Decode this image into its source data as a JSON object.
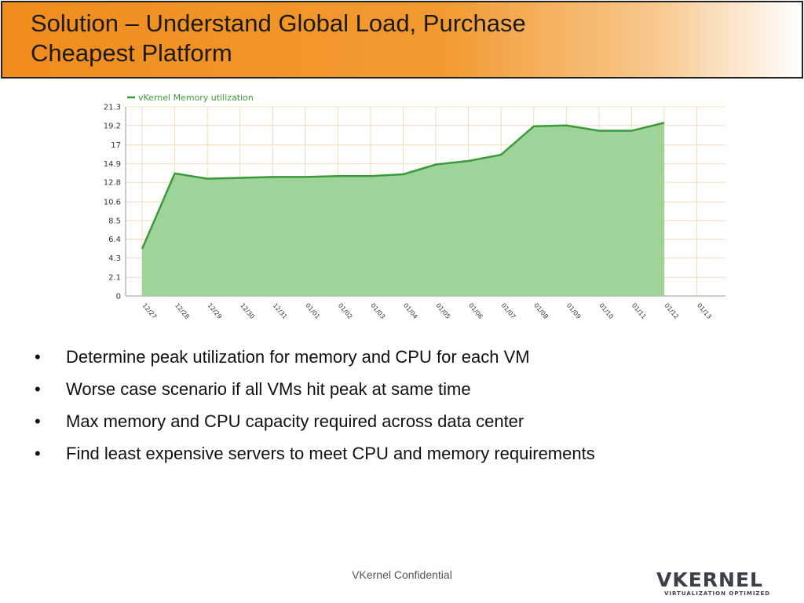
{
  "title": "Solution – Understand Global Load, Purchase Cheapest Platform",
  "chart_data": {
    "type": "area",
    "categories": [
      "12/27",
      "12/28",
      "12/29",
      "12/30",
      "12/31",
      "01/01",
      "01/02",
      "01/03",
      "01/04",
      "01/05",
      "01/06",
      "01/07",
      "01/08",
      "01/09",
      "01/10",
      "01/11",
      "01/12",
      "01/13"
    ],
    "series": [
      {
        "name": "vKernel Memory utilization",
        "color": "#3a9a3a",
        "fill": "#9dd49a",
        "values": [
          5.3,
          13.8,
          13.2,
          13.3,
          13.4,
          13.4,
          13.5,
          13.5,
          13.7,
          14.8,
          15.2,
          15.9,
          19.1,
          19.2,
          18.6,
          18.6,
          19.5,
          null
        ]
      }
    ],
    "ylim": [
      0,
      21.3
    ],
    "yticks": [
      0,
      2.1,
      4.3,
      6.4,
      8.5,
      10.6,
      12.8,
      14.9,
      17,
      19.2,
      21.3
    ],
    "grid": true,
    "legend": "top-left"
  },
  "bullets": [
    "Determine peak utilization for memory and CPU for each VM",
    "Worse case scenario if all VMs hit peak at same time",
    "Max memory and CPU capacity required across data center",
    "Find least expensive servers to meet CPU and memory requirements"
  ],
  "footer": "VKernel Confidential",
  "logo": {
    "name": "VKERNEL",
    "tagline": "VIRTUALIZATION OPTIMIZED"
  }
}
